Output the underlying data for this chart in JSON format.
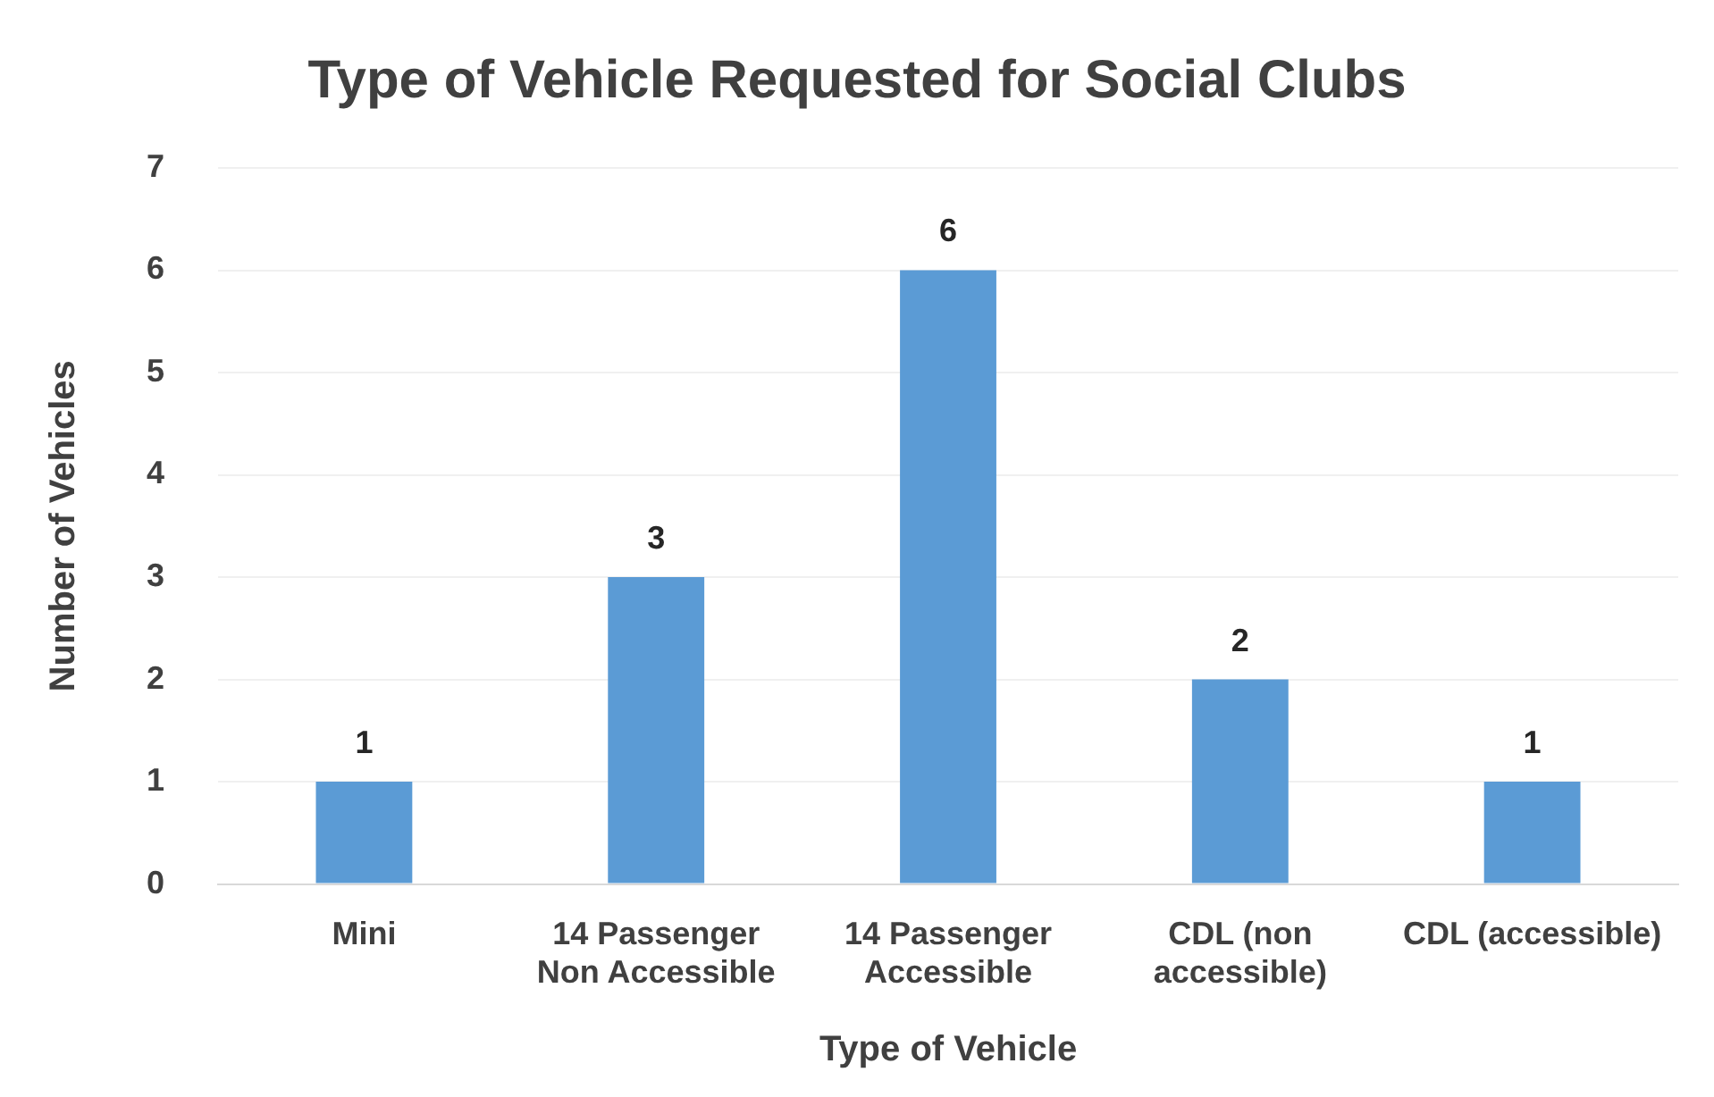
{
  "chart_data": {
    "type": "bar",
    "title": "Type of Vehicle Requested for Social Clubs",
    "xlabel": "Type of Vehicle",
    "ylabel": "Number of Vehicles",
    "categories": [
      "Mini",
      "14 Passenger Non Accessible",
      "14 Passenger Accessible",
      "CDL (non accessible)",
      "CDL (accessible)"
    ],
    "values": [
      1,
      3,
      6,
      2,
      1
    ],
    "color": "#5b9bd5",
    "ylim": [
      0,
      7
    ],
    "yticks": [
      0,
      1,
      2,
      3,
      4,
      5,
      6,
      7
    ],
    "grid": "y",
    "legend": false,
    "data_labels": true
  }
}
